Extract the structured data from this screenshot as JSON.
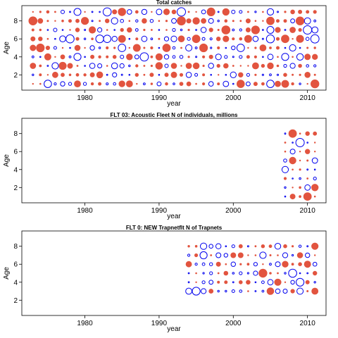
{
  "colors": {
    "positive": "#0000ee",
    "negative": "#e2543f",
    "frame": "#000000"
  },
  "chart_data": [
    {
      "type": "scatter",
      "title": "Total catches",
      "xlabel": "year",
      "ylabel": "Age",
      "xlim": [
        1971.5,
        2012.5
      ],
      "ylim": [
        0.3,
        9.7
      ],
      "x_ticks": [
        1980,
        1990,
        2000,
        2010
      ],
      "y_ticks": [
        2,
        4,
        6,
        8
      ],
      "years": [
        1973,
        2011
      ],
      "ages": [
        1,
        9
      ],
      "grid": false,
      "legend": "none"
    },
    {
      "type": "scatter",
      "title": "FLT 03: Acoustic Fleet  N of individuals, millions",
      "xlabel": "year",
      "ylabel": "Age",
      "xlim": [
        1971.5,
        2012.5
      ],
      "ylim": [
        0.3,
        9.7
      ],
      "x_ticks": [
        1980,
        1990,
        2000,
        2010
      ],
      "y_ticks": [
        2,
        4,
        6,
        8
      ],
      "years": [
        2007,
        2011
      ],
      "ages": [
        1,
        8
      ],
      "grid": false,
      "legend": "none"
    },
    {
      "type": "scatter",
      "title": "FLT 0: NEW Trapnetflt    N of Trapnets",
      "xlabel": "year",
      "ylabel": "Age",
      "xlim": [
        1971.5,
        2012.5
      ],
      "ylim": [
        0.3,
        9.7
      ],
      "x_ticks": [
        1980,
        1990,
        2000,
        2010
      ],
      "y_ticks": [
        2,
        4,
        6,
        8
      ],
      "years": [
        1994,
        2011
      ],
      "ages": [
        3,
        8
      ],
      "grid": false,
      "legend": "none"
    }
  ]
}
